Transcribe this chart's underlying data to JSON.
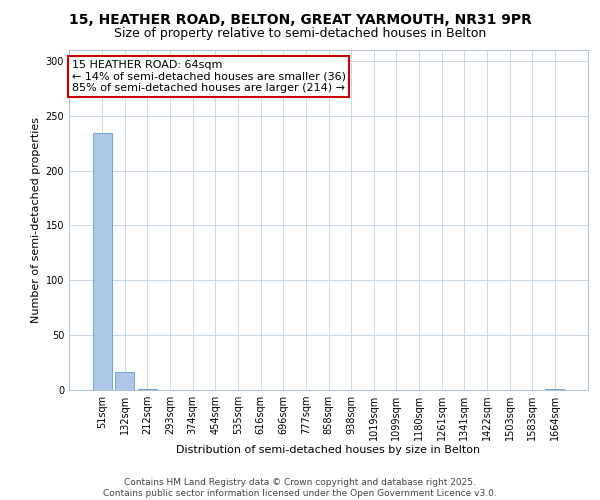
{
  "title_line1": "15, HEATHER ROAD, BELTON, GREAT YARMOUTH, NR31 9PR",
  "title_line2": "Size of property relative to semi-detached houses in Belton",
  "xlabel": "Distribution of semi-detached houses by size in Belton",
  "ylabel": "Number of semi-detached properties",
  "bar_labels": [
    "51sqm",
    "132sqm",
    "212sqm",
    "293sqm",
    "374sqm",
    "454sqm",
    "535sqm",
    "616sqm",
    "696sqm",
    "777sqm",
    "858sqm",
    "938sqm",
    "1019sqm",
    "1099sqm",
    "1180sqm",
    "1261sqm",
    "1341sqm",
    "1422sqm",
    "1503sqm",
    "1583sqm",
    "1664sqm"
  ],
  "bar_values": [
    234,
    16,
    1,
    0,
    0,
    0,
    0,
    0,
    0,
    0,
    0,
    0,
    0,
    0,
    0,
    0,
    0,
    0,
    0,
    0,
    1
  ],
  "bar_color": "#aec6e8",
  "bar_edge_color": "#5b9bd5",
  "ylim": [
    0,
    310
  ],
  "yticks": [
    0,
    50,
    100,
    150,
    200,
    250,
    300
  ],
  "annotation_box_text": "15 HEATHER ROAD: 64sqm\n← 14% of semi-detached houses are smaller (36)\n85% of semi-detached houses are larger (214) →",
  "annotation_box_color": "#ffffff",
  "annotation_box_edge_color": "#cc0000",
  "footer_text": "Contains HM Land Registry data © Crown copyright and database right 2025.\nContains public sector information licensed under the Open Government Licence v3.0.",
  "bg_color": "#ffffff",
  "grid_color": "#c8d8e8",
  "title_fontsize": 10,
  "subtitle_fontsize": 9,
  "tick_fontsize": 7,
  "ylabel_fontsize": 8,
  "xlabel_fontsize": 8,
  "footer_fontsize": 6.5,
  "annot_fontsize": 8
}
